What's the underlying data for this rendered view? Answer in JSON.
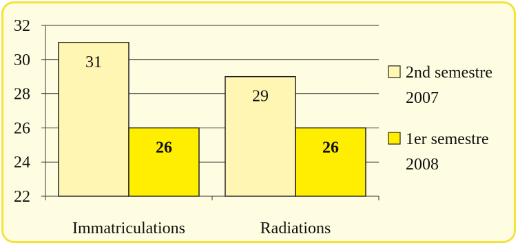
{
  "chart_data": {
    "type": "bar",
    "categories": [
      "Immatriculations",
      "Radiations"
    ],
    "series": [
      {
        "name": "2nd semestre 2007",
        "legend_lines": [
          "2nd semestre",
          "2007"
        ],
        "values": [
          31,
          29
        ],
        "color": "#fff6b3",
        "label_bold": false
      },
      {
        "name": "1er semestre 2008",
        "legend_lines": [
          "1er semestre",
          "2008"
        ],
        "values": [
          26,
          26
        ],
        "color": "#ffee00",
        "label_bold": true
      }
    ],
    "ylim": [
      22,
      32
    ],
    "yticks": [
      22,
      24,
      26,
      28,
      30,
      32
    ],
    "grid": true,
    "legend_position": "right",
    "title": "",
    "xlabel": "",
    "ylabel": ""
  },
  "colors": {
    "frame_border": "#f5e23a",
    "frame_fill": "#fffde1",
    "bar_stroke": "#222222",
    "gridline": "#333333"
  }
}
